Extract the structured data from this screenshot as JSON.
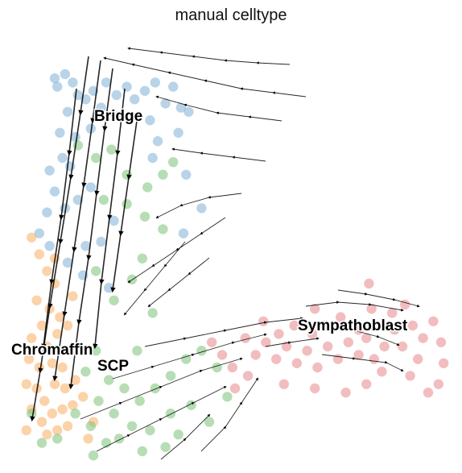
{
  "chart_data": {
    "type": "scatter",
    "title": "manual celltype",
    "xlabel": "",
    "ylabel": "",
    "grid": false,
    "legend": "on data",
    "overlay": "velocity stream arrows",
    "series": [
      {
        "name": "Bridge",
        "color": "#7fb0d6",
        "label": "Bridge",
        "points": [
          [
            1.5,
            8.9
          ],
          [
            1.6,
            8.7
          ],
          [
            1.9,
            9.0
          ],
          [
            2.2,
            8.8
          ],
          [
            2.4,
            8.5
          ],
          [
            2.7,
            8.4
          ],
          [
            3.0,
            8.6
          ],
          [
            3.3,
            8.2
          ],
          [
            3.5,
            8.8
          ],
          [
            3.9,
            8.5
          ],
          [
            4.3,
            8.7
          ],
          [
            4.6,
            8.4
          ],
          [
            5.0,
            8.6
          ],
          [
            5.4,
            8.8
          ],
          [
            5.8,
            8.3
          ],
          [
            6.1,
            8.7
          ],
          [
            6.4,
            8.2
          ],
          [
            6.7,
            8.1
          ],
          [
            5.2,
            7.9
          ],
          [
            4.0,
            8.0
          ],
          [
            2.0,
            8.1
          ],
          [
            1.7,
            7.6
          ],
          [
            2.3,
            7.5
          ],
          [
            2.9,
            7.7
          ],
          [
            1.8,
            7.0
          ],
          [
            1.3,
            6.7
          ],
          [
            2.1,
            6.8
          ],
          [
            1.5,
            6.2
          ],
          [
            2.4,
            6.0
          ],
          [
            1.2,
            5.7
          ],
          [
            1.9,
            5.8
          ],
          [
            2.9,
            6.3
          ],
          [
            3.8,
            5.5
          ],
          [
            3.3,
            5.0
          ],
          [
            2.7,
            4.9
          ],
          [
            3.6,
            3.9
          ],
          [
            5.3,
            7.0
          ],
          [
            5.5,
            7.4
          ],
          [
            6.3,
            7.6
          ],
          [
            6.6,
            6.6
          ],
          [
            6.5,
            5.2
          ],
          [
            7.2,
            5.8
          ],
          [
            0.9,
            5.2
          ],
          [
            1.3,
            4.9
          ],
          [
            2.0,
            4.5
          ],
          [
            2.6,
            4.2
          ]
        ]
      },
      {
        "name": "Chromaffin",
        "color": "#f9ad63",
        "label": "Chromaffin",
        "points": [
          [
            0.6,
            5.1
          ],
          [
            0.9,
            4.7
          ],
          [
            1.2,
            4.3
          ],
          [
            1.5,
            4.0
          ],
          [
            0.8,
            3.6
          ],
          [
            1.3,
            3.4
          ],
          [
            1.7,
            3.2
          ],
          [
            1.0,
            3.0
          ],
          [
            1.6,
            2.8
          ],
          [
            2.0,
            3.0
          ],
          [
            0.6,
            2.7
          ],
          [
            1.2,
            2.5
          ],
          [
            0.5,
            2.2
          ],
          [
            0.9,
            2.0
          ],
          [
            1.4,
            2.1
          ],
          [
            1.8,
            2.0
          ],
          [
            2.1,
            2.4
          ],
          [
            0.4,
            1.6
          ],
          [
            0.8,
            1.5
          ],
          [
            1.1,
            1.2
          ],
          [
            1.5,
            1.6
          ],
          [
            1.9,
            1.5
          ],
          [
            2.3,
            1.7
          ],
          [
            0.6,
            1.0
          ],
          [
            1.0,
            0.7
          ],
          [
            1.4,
            0.9
          ],
          [
            1.8,
            1.0
          ],
          [
            2.2,
            1.1
          ],
          [
            2.6,
            1.3
          ],
          [
            0.4,
            0.5
          ],
          [
            1.2,
            0.4
          ],
          [
            1.6,
            0.5
          ],
          [
            2.0,
            0.6
          ],
          [
            2.8,
            0.3
          ],
          [
            3.0,
            0.7
          ],
          [
            1.5,
            4.6
          ],
          [
            2.2,
            3.7
          ]
        ]
      },
      {
        "name": "SCP",
        "color": "#7cc178",
        "label": "SCP",
        "points": [
          [
            2.4,
            7.3
          ],
          [
            3.1,
            7.0
          ],
          [
            3.7,
            7.2
          ],
          [
            4.3,
            6.6
          ],
          [
            5.1,
            6.3
          ],
          [
            5.7,
            6.6
          ],
          [
            6.1,
            6.9
          ],
          [
            3.4,
            6.0
          ],
          [
            4.3,
            5.9
          ],
          [
            5.0,
            5.6
          ],
          [
            5.7,
            5.3
          ],
          [
            4.9,
            4.6
          ],
          [
            3.1,
            4.3
          ],
          [
            4.5,
            4.1
          ],
          [
            3.8,
            3.6
          ],
          [
            5.3,
            3.3
          ],
          [
            4.7,
            2.4
          ],
          [
            3.1,
            2.4
          ],
          [
            3.6,
            1.7
          ],
          [
            4.2,
            1.5
          ],
          [
            4.8,
            1.2
          ],
          [
            5.4,
            1.5
          ],
          [
            6.0,
            1.8
          ],
          [
            6.6,
            2.2
          ],
          [
            7.2,
            2.4
          ],
          [
            7.8,
            2.0
          ],
          [
            8.2,
            1.3
          ],
          [
            2.7,
            1.9
          ],
          [
            3.2,
            1.2
          ],
          [
            3.8,
            0.9
          ],
          [
            4.5,
            0.6
          ],
          [
            5.2,
            0.5
          ],
          [
            6.0,
            0.9
          ],
          [
            6.8,
            1.1
          ],
          [
            2.3,
            0.9
          ],
          [
            2.9,
            0.6
          ],
          [
            1.6,
            0.3
          ],
          [
            1.0,
            0.2
          ],
          [
            0.6,
            0.9
          ],
          [
            3.5,
            0.2
          ],
          [
            4.0,
            0.3
          ],
          [
            5.8,
            0.1
          ],
          [
            7.5,
            0.7
          ],
          [
            6.3,
            0.4
          ],
          [
            4.9,
            0.0
          ],
          [
            3.0,
            -0.1
          ]
        ]
      },
      {
        "name": "Sympathoblast",
        "color": "#e7868a",
        "label": "Sympathoblast",
        "points": [
          [
            7.6,
            2.6
          ],
          [
            8.0,
            2.3
          ],
          [
            8.4,
            2.0
          ],
          [
            8.9,
            2.7
          ],
          [
            9.3,
            2.3
          ],
          [
            9.7,
            2.6
          ],
          [
            10.1,
            2.2
          ],
          [
            10.5,
            2.5
          ],
          [
            10.9,
            2.1
          ],
          [
            11.3,
            2.4
          ],
          [
            11.7,
            2.0
          ],
          [
            12.1,
            2.5
          ],
          [
            12.5,
            2.2
          ],
          [
            12.9,
            2.6
          ],
          [
            13.3,
            2.3
          ],
          [
            13.6,
            2.7
          ],
          [
            13.9,
            2.2
          ],
          [
            14.3,
            2.5
          ],
          [
            14.7,
            2.9
          ],
          [
            15.0,
            2.5
          ],
          [
            15.4,
            3.0
          ],
          [
            15.8,
            2.7
          ],
          [
            16.2,
            3.1
          ],
          [
            16.5,
            2.6
          ],
          [
            15.1,
            3.5
          ],
          [
            14.6,
            3.3
          ],
          [
            13.8,
            3.4
          ],
          [
            13.3,
            2.9
          ],
          [
            12.6,
            3.2
          ],
          [
            12.0,
            3.0
          ],
          [
            11.5,
            2.8
          ],
          [
            10.8,
            3.0
          ],
          [
            10.2,
            2.8
          ],
          [
            9.6,
            3.1
          ],
          [
            9.0,
            1.8
          ],
          [
            8.5,
            1.5
          ],
          [
            10.4,
            1.6
          ],
          [
            11.6,
            1.5
          ],
          [
            12.8,
            1.4
          ],
          [
            13.6,
            1.6
          ],
          [
            14.2,
            1.9
          ],
          [
            15.3,
            1.8
          ],
          [
            16.0,
            1.4
          ],
          [
            16.6,
            2.1
          ],
          [
            13.7,
            4.0
          ],
          [
            11.6,
            3.4
          ],
          [
            16.4,
            1.6
          ],
          [
            15.6,
            2.2
          ]
        ]
      }
    ]
  }
}
